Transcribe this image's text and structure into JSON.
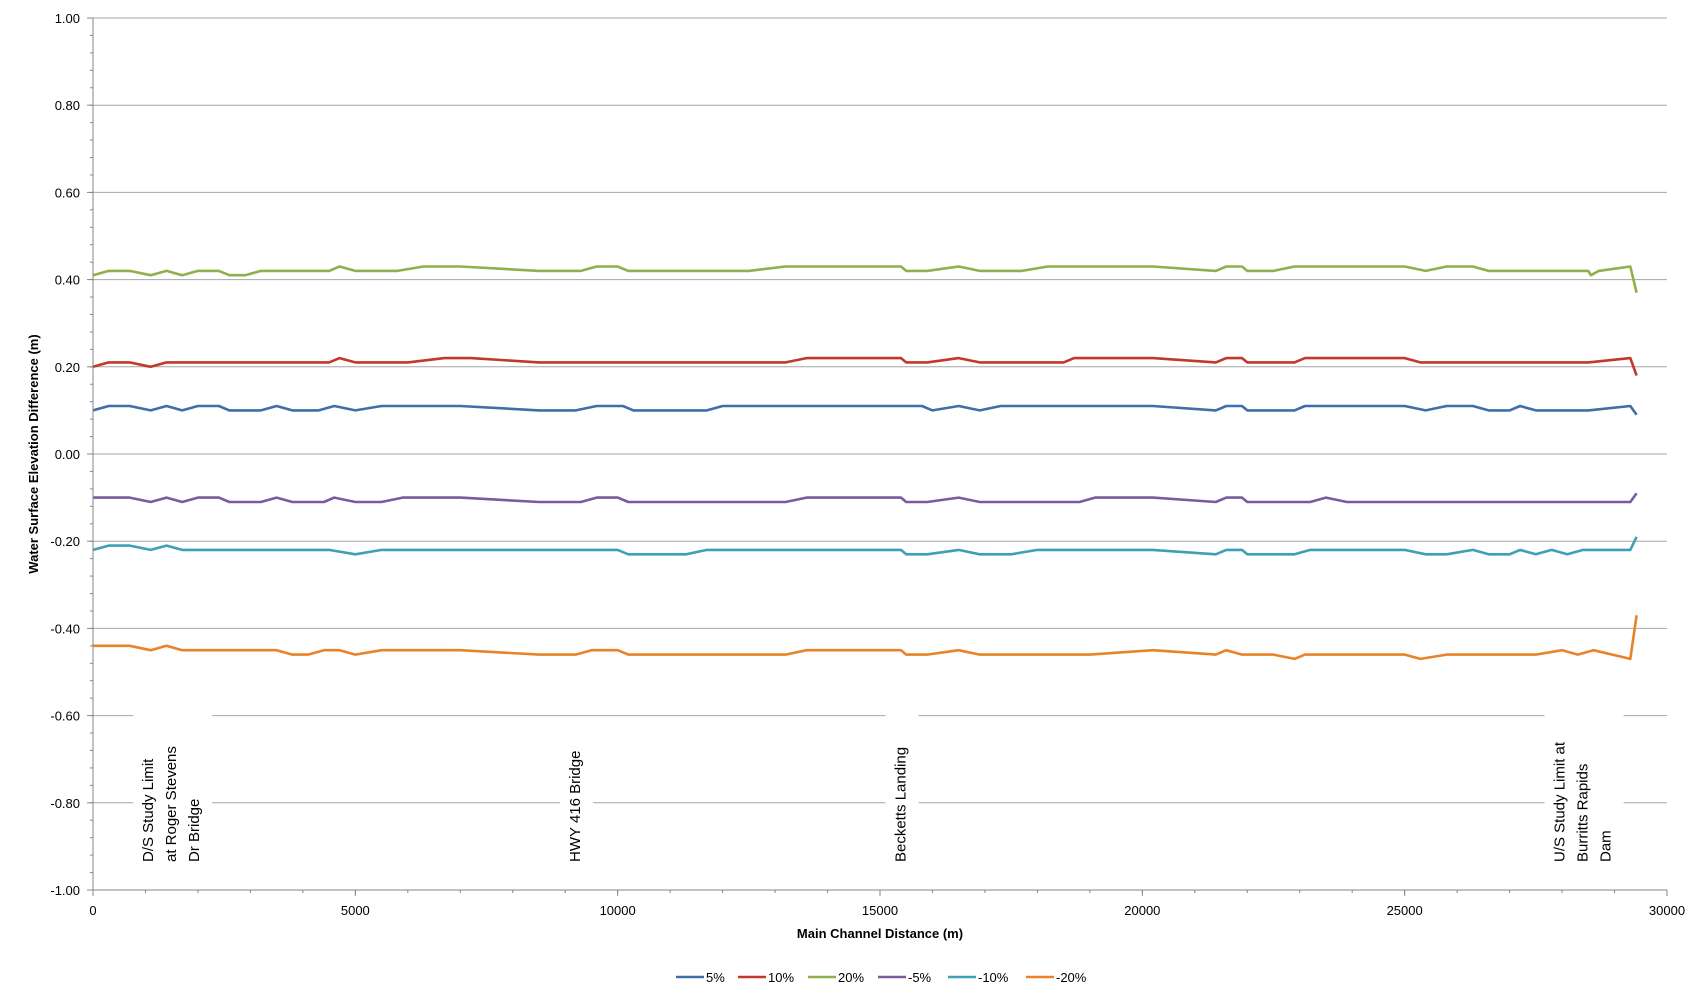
{
  "chart_data": {
    "type": "line",
    "xlabel": "Main Channel Distance (m)",
    "ylabel": "Water Surface Elevation Difference (m)",
    "xlim": [
      0,
      30000
    ],
    "ylim": [
      -1.0,
      1.0
    ],
    "xticks": [
      0,
      5000,
      10000,
      15000,
      20000,
      25000,
      30000
    ],
    "xtick_labels": [
      "0",
      "5000",
      "10000",
      "15000",
      "20000",
      "25000",
      "30000"
    ],
    "yticks": [
      -1.0,
      -0.8,
      -0.6,
      -0.4,
      -0.2,
      0.0,
      0.2,
      0.4,
      0.6,
      0.8,
      1.0
    ],
    "ytick_labels": [
      "-1.00",
      "-0.80",
      "-0.60",
      "-0.40",
      "-0.20",
      "0.00",
      "0.20",
      "0.40",
      "0.60",
      "0.80",
      "1.00"
    ],
    "grid": "horizontal",
    "legend_position": "bottom",
    "annotations": [
      {
        "x": 1500,
        "lines": [
          "D/S Study Limit",
          "at Roger Stevens",
          "Dr Bridge"
        ]
      },
      {
        "x": 9200,
        "lines": [
          "HWY 416 Bridge"
        ]
      },
      {
        "x": 15400,
        "lines": [
          "Becketts Landing"
        ]
      },
      {
        "x": 28400,
        "lines": [
          "U/S Study Limit at",
          "Burritts Rapids",
          "Dam"
        ]
      }
    ],
    "series": [
      {
        "name": "5%",
        "color": "#3f6ea8",
        "x": [
          0,
          300,
          700,
          1100,
          1400,
          1700,
          2000,
          2400,
          2600,
          3000,
          3200,
          3500,
          3800,
          4300,
          4600,
          5000,
          5500,
          6000,
          7000,
          8500,
          9200,
          9600,
          10100,
          10300,
          11700,
          12000,
          13000,
          14000,
          15000,
          15600,
          15800,
          16000,
          16500,
          16900,
          17300,
          18000,
          19000,
          20200,
          21400,
          21600,
          21900,
          22000,
          22500,
          22900,
          23100,
          24000,
          25000,
          25400,
          25800,
          26300,
          26600,
          27000,
          27200,
          27500,
          28000,
          28500,
          29300,
          29420
        ],
        "values": [
          0.1,
          0.11,
          0.11,
          0.1,
          0.11,
          0.1,
          0.11,
          0.11,
          0.1,
          0.1,
          0.1,
          0.11,
          0.1,
          0.1,
          0.11,
          0.1,
          0.11,
          0.11,
          0.11,
          0.1,
          0.1,
          0.11,
          0.11,
          0.1,
          0.1,
          0.11,
          0.11,
          0.11,
          0.11,
          0.11,
          0.11,
          0.1,
          0.11,
          0.1,
          0.11,
          0.11,
          0.11,
          0.11,
          0.1,
          0.11,
          0.11,
          0.1,
          0.1,
          0.1,
          0.11,
          0.11,
          0.11,
          0.1,
          0.11,
          0.11,
          0.1,
          0.1,
          0.11,
          0.1,
          0.1,
          0.1,
          0.11,
          0.09
        ]
      },
      {
        "name": "10%",
        "color": "#c0392b",
        "x": [
          0,
          300,
          700,
          1100,
          1400,
          2000,
          3000,
          4000,
          4500,
          4700,
          5000,
          6000,
          6700,
          7200,
          8500,
          10000,
          12000,
          13200,
          13600,
          14500,
          15400,
          15500,
          15900,
          16500,
          16900,
          17500,
          18500,
          18700,
          20200,
          21400,
          21600,
          21900,
          22000,
          22900,
          23100,
          24000,
          25000,
          25300,
          26000,
          27000,
          28500,
          29300,
          29420
        ],
        "values": [
          0.2,
          0.21,
          0.21,
          0.2,
          0.21,
          0.21,
          0.21,
          0.21,
          0.21,
          0.22,
          0.21,
          0.21,
          0.22,
          0.22,
          0.21,
          0.21,
          0.21,
          0.21,
          0.22,
          0.22,
          0.22,
          0.21,
          0.21,
          0.22,
          0.21,
          0.21,
          0.21,
          0.22,
          0.22,
          0.21,
          0.22,
          0.22,
          0.21,
          0.21,
          0.22,
          0.22,
          0.22,
          0.21,
          0.21,
          0.21,
          0.21,
          0.22,
          0.18
        ]
      },
      {
        "name": "20%",
        "color": "#8fb04a",
        "x": [
          0,
          300,
          700,
          1100,
          1400,
          1700,
          2000,
          2400,
          2600,
          2900,
          3200,
          3500,
          4000,
          4500,
          4700,
          5000,
          5800,
          6300,
          7000,
          8500,
          9300,
          9600,
          10000,
          10200,
          11000,
          12500,
          13200,
          14000,
          15400,
          15500,
          15900,
          16500,
          16900,
          17700,
          18200,
          19000,
          20200,
          21400,
          21600,
          21900,
          22000,
          22500,
          22900,
          23500,
          25000,
          25400,
          25800,
          26300,
          26600,
          27500,
          28500,
          28550,
          28700,
          29300,
          29420
        ],
        "values": [
          0.41,
          0.42,
          0.42,
          0.41,
          0.42,
          0.41,
          0.42,
          0.42,
          0.41,
          0.41,
          0.42,
          0.42,
          0.42,
          0.42,
          0.43,
          0.42,
          0.42,
          0.43,
          0.43,
          0.42,
          0.42,
          0.43,
          0.43,
          0.42,
          0.42,
          0.42,
          0.43,
          0.43,
          0.43,
          0.42,
          0.42,
          0.43,
          0.42,
          0.42,
          0.43,
          0.43,
          0.43,
          0.42,
          0.43,
          0.43,
          0.42,
          0.42,
          0.43,
          0.43,
          0.43,
          0.42,
          0.43,
          0.43,
          0.42,
          0.42,
          0.42,
          0.41,
          0.42,
          0.43,
          0.37
        ]
      },
      {
        "name": "-5%",
        "color": "#7b5a9e",
        "x": [
          0,
          300,
          700,
          1100,
          1400,
          1700,
          2000,
          2400,
          2600,
          3200,
          3500,
          3800,
          4400,
          4600,
          5000,
          5500,
          5900,
          7000,
          8500,
          9300,
          9600,
          10000,
          10200,
          12000,
          13200,
          13600,
          14500,
          15400,
          15500,
          15900,
          16500,
          16900,
          18000,
          18800,
          19100,
          20200,
          21400,
          21600,
          21900,
          22000,
          22900,
          23200,
          23500,
          23900,
          25000,
          26000,
          27000,
          28000,
          29300,
          29420
        ],
        "values": [
          -0.1,
          -0.1,
          -0.1,
          -0.11,
          -0.1,
          -0.11,
          -0.1,
          -0.1,
          -0.11,
          -0.11,
          -0.1,
          -0.11,
          -0.11,
          -0.1,
          -0.11,
          -0.11,
          -0.1,
          -0.1,
          -0.11,
          -0.11,
          -0.1,
          -0.1,
          -0.11,
          -0.11,
          -0.11,
          -0.1,
          -0.1,
          -0.1,
          -0.11,
          -0.11,
          -0.1,
          -0.11,
          -0.11,
          -0.11,
          -0.1,
          -0.1,
          -0.11,
          -0.1,
          -0.1,
          -0.11,
          -0.11,
          -0.11,
          -0.1,
          -0.11,
          -0.11,
          -0.11,
          -0.11,
          -0.11,
          -0.11,
          -0.09
        ]
      },
      {
        "name": "-10%",
        "color": "#3fa0b5",
        "x": [
          0,
          300,
          700,
          1100,
          1400,
          1700,
          2000,
          3000,
          4500,
          5000,
          5500,
          7000,
          8500,
          10000,
          10200,
          11300,
          11700,
          12500,
          13200,
          14500,
          15400,
          15500,
          15900,
          16500,
          16900,
          17500,
          18000,
          19000,
          20200,
          21400,
          21600,
          21900,
          22000,
          22500,
          22900,
          23200,
          24000,
          25000,
          25400,
          25800,
          26300,
          26600,
          27000,
          27200,
          27500,
          27800,
          28100,
          28400,
          29000,
          29300,
          29420
        ],
        "values": [
          -0.22,
          -0.21,
          -0.21,
          -0.22,
          -0.21,
          -0.22,
          -0.22,
          -0.22,
          -0.22,
          -0.23,
          -0.22,
          -0.22,
          -0.22,
          -0.22,
          -0.23,
          -0.23,
          -0.22,
          -0.22,
          -0.22,
          -0.22,
          -0.22,
          -0.23,
          -0.23,
          -0.22,
          -0.23,
          -0.23,
          -0.22,
          -0.22,
          -0.22,
          -0.23,
          -0.22,
          -0.22,
          -0.23,
          -0.23,
          -0.23,
          -0.22,
          -0.22,
          -0.22,
          -0.23,
          -0.23,
          -0.22,
          -0.23,
          -0.23,
          -0.22,
          -0.23,
          -0.22,
          -0.23,
          -0.22,
          -0.22,
          -0.22,
          -0.19
        ]
      },
      {
        "name": "-20%",
        "color": "#e8832a",
        "x": [
          0,
          300,
          700,
          1100,
          1400,
          1700,
          2000,
          3000,
          3500,
          3800,
          4100,
          4400,
          4700,
          5000,
          5500,
          7000,
          8500,
          9200,
          9500,
          10000,
          10200,
          12000,
          13200,
          13600,
          14500,
          15400,
          15500,
          15900,
          16500,
          16900,
          18000,
          19000,
          20200,
          21400,
          21600,
          21900,
          22000,
          22500,
          22900,
          23100,
          24000,
          25000,
          25300,
          25800,
          26500,
          27500,
          28000,
          28300,
          28600,
          29300,
          29420
        ],
        "values": [
          -0.44,
          -0.44,
          -0.44,
          -0.45,
          -0.44,
          -0.45,
          -0.45,
          -0.45,
          -0.45,
          -0.46,
          -0.46,
          -0.45,
          -0.45,
          -0.46,
          -0.45,
          -0.45,
          -0.46,
          -0.46,
          -0.45,
          -0.45,
          -0.46,
          -0.46,
          -0.46,
          -0.45,
          -0.45,
          -0.45,
          -0.46,
          -0.46,
          -0.45,
          -0.46,
          -0.46,
          -0.46,
          -0.45,
          -0.46,
          -0.45,
          -0.46,
          -0.46,
          -0.46,
          -0.47,
          -0.46,
          -0.46,
          -0.46,
          -0.47,
          -0.46,
          -0.46,
          -0.46,
          -0.45,
          -0.46,
          -0.45,
          -0.47,
          -0.37
        ]
      }
    ]
  }
}
